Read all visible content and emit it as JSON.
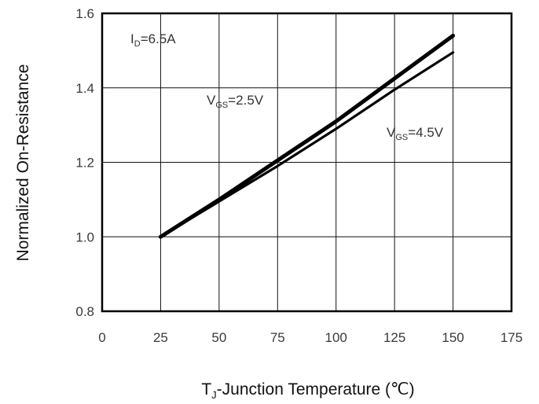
{
  "chart_data": {
    "type": "line",
    "xlabel": {
      "base": "T",
      "sub": "J",
      "rest": "-Junction Temperature (℃)"
    },
    "ylabel": "Normalized On-Resistance",
    "xlim": [
      0,
      175
    ],
    "ylim": [
      0.8,
      1.6
    ],
    "xticks": [
      "0",
      "25",
      "50",
      "75",
      "100",
      "125",
      "150",
      "175"
    ],
    "yticks": [
      "0.8",
      "1.0",
      "1.2",
      "1.4",
      "1.6"
    ],
    "grid": true,
    "annotations": [
      {
        "base": "I",
        "sub": "D",
        "rest": "=6.5A"
      },
      {
        "base": "V",
        "sub": "GS",
        "rest": "=2.5V"
      },
      {
        "base": "V",
        "sub": "GS",
        "rest": "=4.5V"
      }
    ],
    "series": [
      {
        "name": "VGS=2.5V",
        "x": [
          25,
          50,
          75,
          100,
          125,
          150
        ],
        "y": [
          1.0,
          1.1,
          1.205,
          1.31,
          1.425,
          1.54
        ]
      },
      {
        "name": "VGS=4.5V",
        "x": [
          25,
          50,
          75,
          100,
          125,
          150
        ],
        "y": [
          1.0,
          1.095,
          1.19,
          1.29,
          1.395,
          1.495
        ]
      }
    ]
  }
}
